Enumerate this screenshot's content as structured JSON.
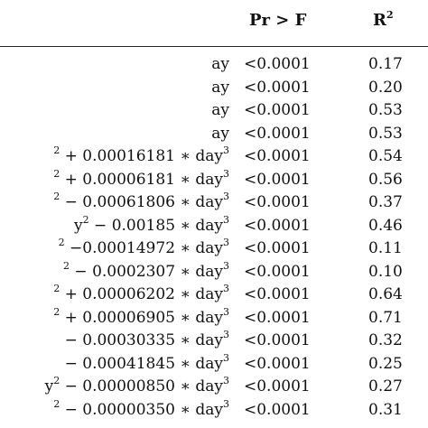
{
  "header": {
    "pr_label": "Pr > F",
    "r2_base": "R",
    "r2_sup": "2"
  },
  "rows": [
    {
      "model": [
        {
          "t": "ay"
        }
      ],
      "p": "<0.0001",
      "r2": "0.17"
    },
    {
      "model": [
        {
          "t": "ay"
        }
      ],
      "p": "<0.0001",
      "r2": "0.20"
    },
    {
      "model": [
        {
          "t": "ay"
        }
      ],
      "p": "<0.0001",
      "r2": "0.53"
    },
    {
      "model": [
        {
          "t": "ay"
        }
      ],
      "p": "<0.0001",
      "r2": "0.53"
    },
    {
      "model": [
        {
          "t": "2",
          "s": 1
        },
        {
          "t": " + 0.00016181 ∗ day"
        },
        {
          "t": "3",
          "s": 1
        }
      ],
      "p": "<0.0001",
      "r2": "0.54"
    },
    {
      "model": [
        {
          "t": "2",
          "s": 1
        },
        {
          "t": " + 0.00006181 ∗ day"
        },
        {
          "t": "3",
          "s": 1
        }
      ],
      "p": "<0.0001",
      "r2": "0.56"
    },
    {
      "model": [
        {
          "t": "2",
          "s": 1
        },
        {
          "t": " − 0.00061806 ∗ day"
        },
        {
          "t": "3",
          "s": 1
        }
      ],
      "p": "<0.0001",
      "r2": "0.37"
    },
    {
      "model": [
        {
          "t": "y"
        },
        {
          "t": "2",
          "s": 1
        },
        {
          "t": " − 0.00185 ∗ day"
        },
        {
          "t": "3",
          "s": 1
        }
      ],
      "p": "<0.0001",
      "r2": "0.46"
    },
    {
      "model": [
        {
          "t": "2",
          "s": 1
        },
        {
          "t": " −0.00014972 ∗ day"
        },
        {
          "t": "3",
          "s": 1
        }
      ],
      "p": "<0.0001",
      "r2": "0.11"
    },
    {
      "model": [
        {
          "t": "2",
          "s": 1
        },
        {
          "t": " − 0.0002307 ∗ day"
        },
        {
          "t": "3",
          "s": 1
        }
      ],
      "p": "<0.0001",
      "r2": "0.10"
    },
    {
      "model": [
        {
          "t": "2",
          "s": 1
        },
        {
          "t": " + 0.00006202 ∗ day"
        },
        {
          "t": "3",
          "s": 1
        }
      ],
      "p": "<0.0001",
      "r2": "0.64"
    },
    {
      "model": [
        {
          "t": "2",
          "s": 1
        },
        {
          "t": " + 0.00006905 ∗ day"
        },
        {
          "t": "3",
          "s": 1
        }
      ],
      "p": "<0.0001",
      "r2": "0.71"
    },
    {
      "model": [
        {
          "t": "− 0.00030335 ∗ day"
        },
        {
          "t": "3",
          "s": 1
        }
      ],
      "p": "<0.0001",
      "r2": "0.32"
    },
    {
      "model": [
        {
          "t": "− 0.00041845 ∗ day"
        },
        {
          "t": "3",
          "s": 1
        }
      ],
      "p": "<0.0001",
      "r2": "0.25"
    },
    {
      "model": [
        {
          "t": "y"
        },
        {
          "t": "2",
          "s": 1
        },
        {
          "t": " − 0.00000850 ∗ day"
        },
        {
          "t": "3",
          "s": 1
        }
      ],
      "p": "<0.0001",
      "r2": "0.27"
    },
    {
      "model": [
        {
          "t": "2",
          "s": 1
        },
        {
          "t": " − 0.00000350 ∗ day"
        },
        {
          "t": "3",
          "s": 1
        }
      ],
      "p": "<0.0001",
      "r2": "0.31"
    }
  ]
}
